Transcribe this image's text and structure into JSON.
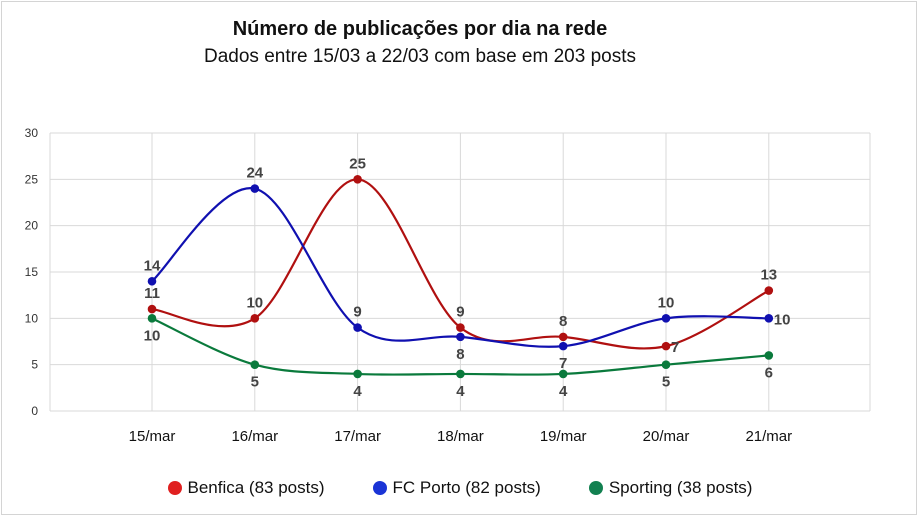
{
  "chart_data": {
    "type": "line",
    "title": "Número de publicações por dia na rede",
    "subtitle": "Dados entre 15/03 a 22/03 com base em 203 posts",
    "categories": [
      "15/mar",
      "16/mar",
      "17/mar",
      "18/mar",
      "19/mar",
      "20/mar",
      "21/mar"
    ],
    "ylim": [
      0,
      30
    ],
    "yticks": [
      0,
      5,
      10,
      15,
      20,
      25,
      30
    ],
    "grid": true,
    "legend_position": "bottom",
    "series": [
      {
        "name": "Benfica (83 posts)",
        "color": "#b01010",
        "values": [
          11,
          10,
          25,
          9,
          8,
          7,
          13
        ],
        "label_positions": [
          "above",
          "above",
          "above",
          "above",
          "above",
          "right",
          "above"
        ]
      },
      {
        "name": "FC Porto (82 posts)",
        "color": "#1010b0",
        "values": [
          14,
          24,
          9,
          8,
          7,
          10,
          10
        ],
        "label_positions": [
          "above",
          "above",
          "above",
          "below",
          "below",
          "above",
          "right"
        ]
      },
      {
        "name": "Sporting (38 posts)",
        "color": "#0a7a3c",
        "values": [
          10,
          5,
          4,
          4,
          4,
          5,
          6
        ],
        "label_positions": [
          "below",
          "below",
          "below",
          "below",
          "below",
          "below",
          "below"
        ]
      }
    ]
  },
  "legend_marker_colors": {
    "benfica": "#e02020",
    "porto": "#1a34d6",
    "sporting": "#128050"
  }
}
